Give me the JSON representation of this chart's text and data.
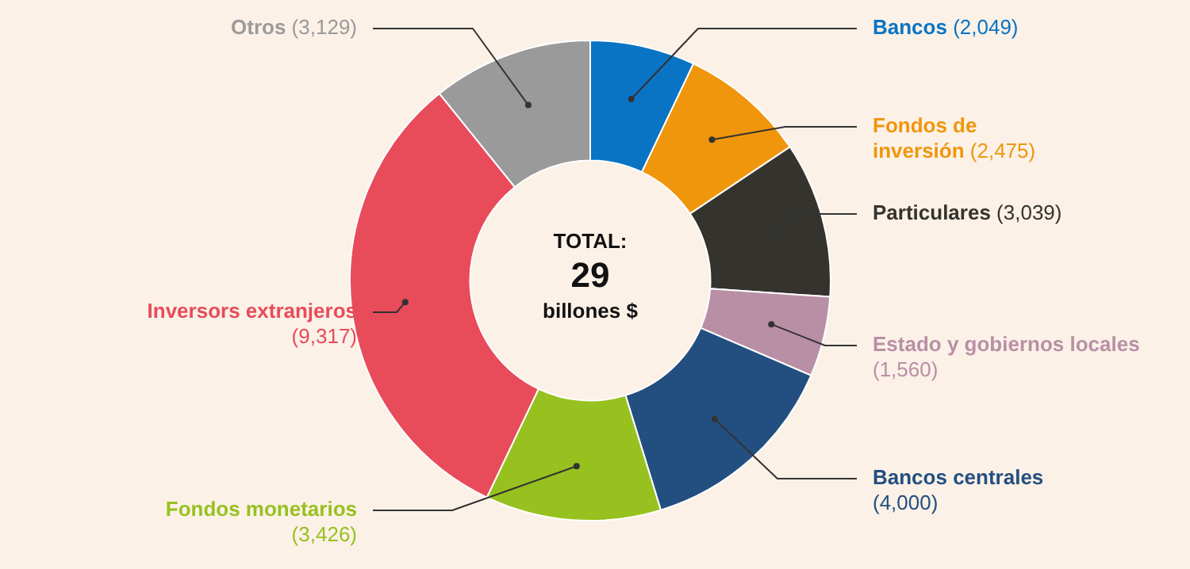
{
  "chart_data": {
    "type": "donut",
    "categories": [
      "Bancos",
      "Fondos de inversión",
      "Particulares",
      "Estado y gobiernos locales",
      "Bancos centrales",
      "Fondos monetarios",
      "Inversors extranjeros",
      "Otros"
    ],
    "values": [
      2049,
      2475,
      3039,
      1560,
      4000,
      3426,
      9317,
      3129
    ],
    "value_labels": [
      "(2,049)",
      "(2,475)",
      "(3,039)",
      "(1,560)",
      "(4,000)",
      "(3,426)",
      "(9,317)",
      "(3,129)"
    ],
    "colors": [
      "#0a74c4",
      "#f0960c",
      "#35332d",
      "#b98fa6",
      "#234f80",
      "#97c11f",
      "#e84b5a",
      "#9a9a9a"
    ],
    "annotations": [
      "TOTAL:",
      "29",
      "billones $"
    ],
    "legend": false
  }
}
